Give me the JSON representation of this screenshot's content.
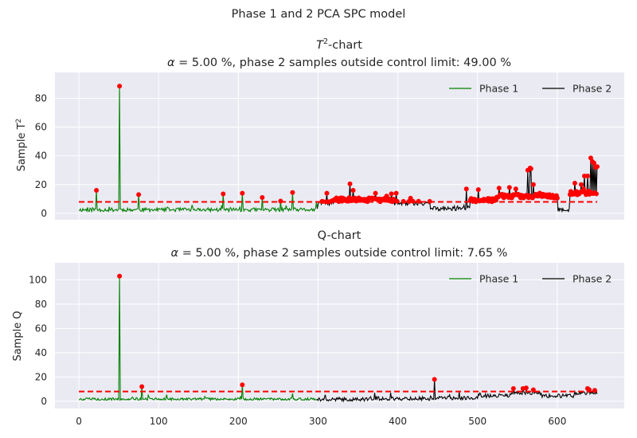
{
  "suptitle": "Phase 1 and 2 PCA SPC model",
  "colors": {
    "phase1": "#008000",
    "phase2": "#000000",
    "limit": "#ff0000",
    "outlier": "#ff0000",
    "background": "#eaeaf2",
    "grid": "#ffffff"
  },
  "chart_data": [
    {
      "type": "line",
      "title_main": "T",
      "title_sup": "2",
      "title_rest": "-chart",
      "subtitle_alpha": "α",
      "subtitle_rest": " = 5.00 %, phase 2 samples outside control limit: 49.00 %",
      "ylabel_main": "Sample T",
      "ylabel_sup": "2",
      "xlim": [
        -30,
        684
      ],
      "ylim": [
        -4.5,
        98
      ],
      "yticks": [
        0,
        20,
        40,
        60,
        80
      ],
      "xticks": [
        0,
        100,
        200,
        300,
        400,
        500,
        600
      ],
      "show_xtick_labels": false,
      "control_limit": 8.0,
      "legend": {
        "placement": "top-right",
        "entries": [
          "Phase 1",
          "Phase 2"
        ]
      },
      "phase1": {
        "name": "Phase 1",
        "x_range": [
          0,
          299
        ],
        "base": 2.5,
        "noise": 1.3,
        "seed": 11,
        "spikes": [
          [
            22,
            16
          ],
          [
            51,
            88.5
          ],
          [
            75,
            13
          ],
          [
            181,
            13.5
          ],
          [
            205,
            14
          ],
          [
            230,
            11
          ],
          [
            253,
            8.5
          ],
          [
            268,
            14.5
          ],
          [
            298,
            8
          ]
        ]
      },
      "phase2": {
        "name": "Phase 2",
        "x_range": [
          300,
          650
        ],
        "seed": 29,
        "segments": [
          [
            300,
            320,
            7
          ],
          [
            320,
            395,
            9.5
          ],
          [
            395,
            440,
            7
          ],
          [
            440,
            490,
            3.5
          ],
          [
            490,
            525,
            9
          ],
          [
            525,
            560,
            12
          ],
          [
            560,
            600,
            12
          ],
          [
            600,
            615,
            2.5
          ],
          [
            615,
            650,
            14
          ]
        ],
        "spikes": [
          [
            311,
            14
          ],
          [
            340,
            20.5
          ],
          [
            344,
            16
          ],
          [
            372,
            14
          ],
          [
            386,
            12
          ],
          [
            398,
            14
          ],
          [
            486,
            17
          ],
          [
            501,
            16.5
          ],
          [
            527,
            17.5
          ],
          [
            540,
            18
          ],
          [
            548,
            17
          ],
          [
            563,
            30
          ],
          [
            566,
            31.5
          ],
          [
            567,
            31
          ],
          [
            570,
            20
          ],
          [
            575,
            12
          ],
          [
            622,
            21
          ],
          [
            630,
            20
          ],
          [
            634,
            26
          ],
          [
            638,
            26
          ],
          [
            642,
            38.5
          ],
          [
            644,
            36
          ],
          [
            646,
            35
          ],
          [
            648,
            32
          ],
          [
            650,
            32.5
          ]
        ]
      }
    },
    {
      "type": "line",
      "title_main": "Q-chart",
      "title_sup": "",
      "title_rest": "",
      "subtitle_alpha": "α",
      "subtitle_rest": " = 5.00 %, phase 2 samples outside control limit: 7.65 %",
      "ylabel_main": "Sample Q",
      "ylabel_sup": "",
      "xlim": [
        -30,
        684
      ],
      "ylim": [
        -6,
        114
      ],
      "yticks": [
        0,
        20,
        40,
        60,
        80,
        100
      ],
      "xticks": [
        0,
        100,
        200,
        300,
        400,
        500,
        600
      ],
      "show_xtick_labels": true,
      "control_limit": 8.0,
      "legend": {
        "placement": "top-right",
        "entries": [
          "Phase 1",
          "Phase 2"
        ]
      },
      "phase1": {
        "name": "Phase 1",
        "x_range": [
          0,
          299
        ],
        "base": 1.8,
        "noise": 1.0,
        "seed": 5,
        "spikes": [
          [
            51,
            103
          ],
          [
            79,
            12
          ],
          [
            110,
            5.5
          ],
          [
            205,
            13.5
          ],
          [
            268,
            6.5
          ]
        ]
      },
      "phase2": {
        "name": "Phase 2",
        "x_range": [
          300,
          650
        ],
        "seed": 41,
        "segments": [
          [
            300,
            360,
            1.5
          ],
          [
            360,
            440,
            2.2
          ],
          [
            440,
            500,
            2.8
          ],
          [
            500,
            540,
            4.5
          ],
          [
            540,
            580,
            6.5
          ],
          [
            580,
            620,
            4.5
          ],
          [
            620,
            650,
            6.5
          ]
        ],
        "spikes": [
          [
            371,
            7
          ],
          [
            391,
            7
          ],
          [
            446,
            18
          ],
          [
            477,
            7.5
          ],
          [
            545,
            10.5
          ],
          [
            557,
            10.5
          ],
          [
            561,
            11
          ],
          [
            576,
            7.5
          ],
          [
            628,
            8
          ],
          [
            640,
            9.5
          ],
          [
            647,
            9
          ]
        ]
      }
    }
  ]
}
